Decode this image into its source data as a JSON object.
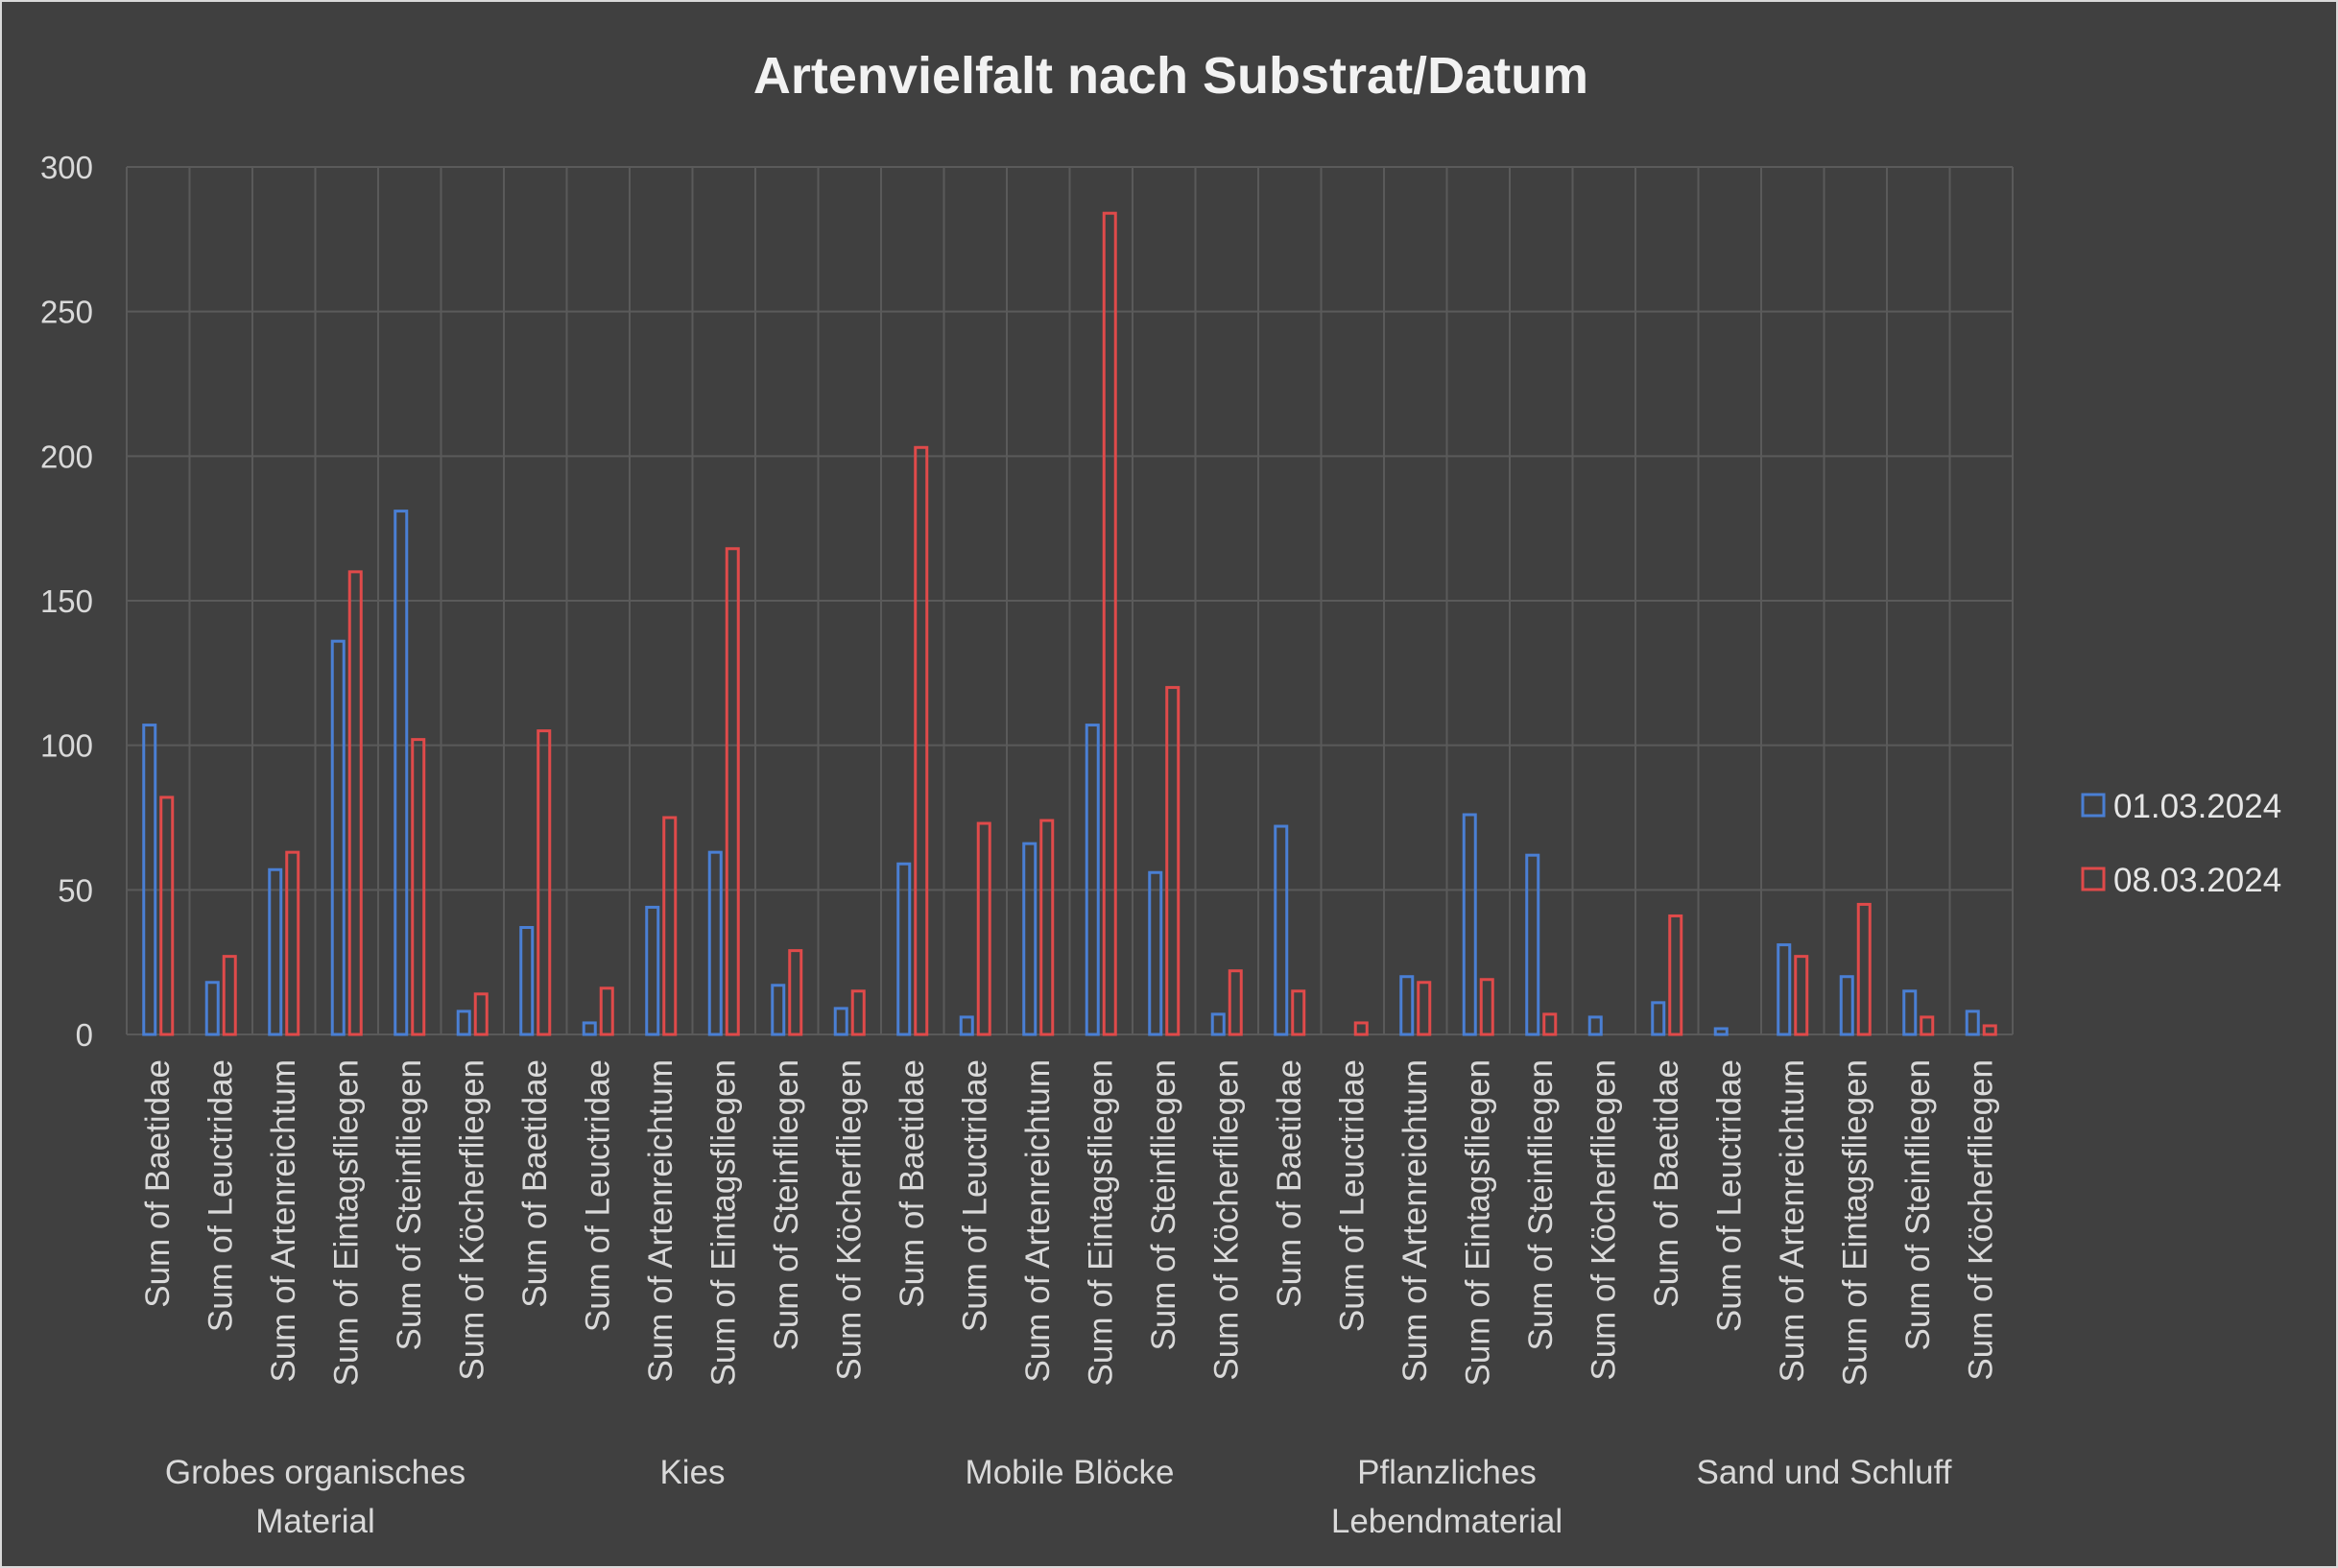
{
  "chart_data": {
    "type": "bar",
    "title": "Artenvielfalt nach Substrat/Datum",
    "ylim": [
      0,
      300
    ],
    "yticks": [
      0,
      50,
      100,
      150,
      200,
      250,
      300
    ],
    "grid": true,
    "legend_position": "right",
    "groups": [
      {
        "label": "Grobes organisches Material",
        "lines": [
          "Grobes organisches",
          "Material"
        ]
      },
      {
        "label": "Kies",
        "lines": [
          "Kies"
        ]
      },
      {
        "label": "Mobile Blöcke",
        "lines": [
          "Mobile Blöcke"
        ]
      },
      {
        "label": "Pflanzliches Lebendmaterial",
        "lines": [
          "Pflanzliches",
          "Lebendmaterial"
        ]
      },
      {
        "label": "Sand und Schluff",
        "lines": [
          "Sand und Schluff"
        ]
      }
    ],
    "categories": [
      "Sum of Baetidae",
      "Sum of Leuctridae",
      "Sum of Artenreichtum",
      "Sum of Eintagsfliegen",
      "Sum of Steinfliegen",
      "Sum of Köcherfliegen",
      "Sum of Baetidae",
      "Sum of Leuctridae",
      "Sum of Artenreichtum",
      "Sum of Eintagsfliegen",
      "Sum of Steinfliegen",
      "Sum of Köcherfliegen",
      "Sum of Baetidae",
      "Sum of Leuctridae",
      "Sum of Artenreichtum",
      "Sum of Eintagsfliegen",
      "Sum of Steinfliegen",
      "Sum of Köcherfliegen",
      "Sum of Baetidae",
      "Sum of Leuctridae",
      "Sum of Artenreichtum",
      "Sum of Eintagsfliegen",
      "Sum of Steinfliegen",
      "Sum of Köcherfliegen",
      "Sum of Baetidae",
      "Sum of Leuctridae",
      "Sum of Artenreichtum",
      "Sum of Eintagsfliegen",
      "Sum of Steinfliegen",
      "Sum of Köcherfliegen"
    ],
    "series": [
      {
        "name": "01.03.2024",
        "color": "#4a7fd4",
        "values": [
          107,
          18,
          57,
          136,
          181,
          8,
          37,
          4,
          44,
          63,
          17,
          9,
          59,
          6,
          66,
          107,
          56,
          7,
          72,
          0,
          20,
          76,
          62,
          6,
          11,
          2,
          31,
          20,
          15,
          8
        ]
      },
      {
        "name": "08.03.2024",
        "color": "#e04a4a",
        "values": [
          82,
          27,
          63,
          160,
          102,
          14,
          105,
          16,
          75,
          168,
          29,
          15,
          203,
          73,
          74,
          284,
          120,
          22,
          15,
          4,
          18,
          19,
          7,
          0,
          41,
          0,
          27,
          45,
          6,
          3
        ]
      }
    ]
  }
}
